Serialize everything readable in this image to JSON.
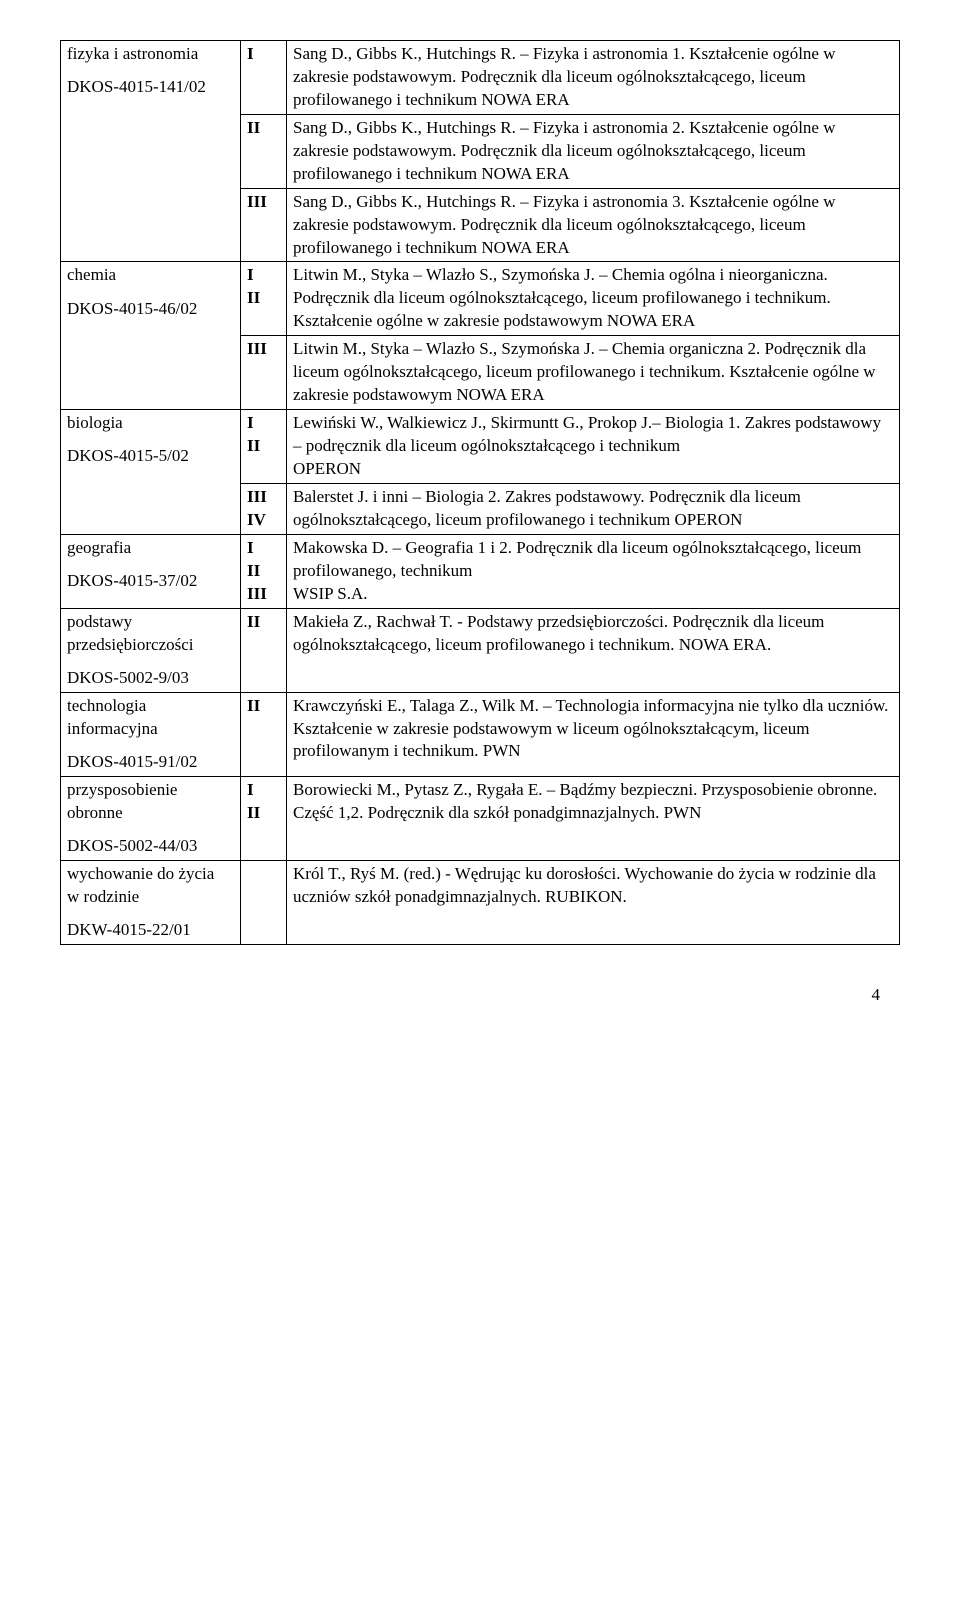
{
  "rows": [
    {
      "subject_lines": [
        "fizyka i astronomia",
        "",
        "DKOS-4015-141/02"
      ],
      "subject_rowspan": 3,
      "cells": [
        {
          "level": "I",
          "text": "Sang D., Gibbs K., Hutchings R. – Fizyka i astronomia 1. Kształcenie ogólne w zakresie podstawowym. Podręcznik dla liceum ogólnokształcącego, liceum profilowanego i technikum NOWA ERA"
        },
        {
          "level": "II",
          "text": "Sang D., Gibbs K., Hutchings R. – Fizyka i astronomia 2. Kształcenie ogólne w zakresie podstawowym. Podręcznik dla liceum ogólnokształcącego, liceum profilowanego i technikum NOWA ERA"
        },
        {
          "level": "III",
          "text": "Sang D., Gibbs K., Hutchings R. – Fizyka i astronomia 3. Kształcenie ogólne w zakresie podstawowym. Podręcznik dla liceum ogólnokształcącego, liceum profilowanego i technikum NOWA ERA"
        }
      ]
    },
    {
      "subject_lines": [
        "chemia",
        "",
        "DKOS-4015-46/02"
      ],
      "subject_rowspan": 2,
      "cells": [
        {
          "level": "I\nII",
          "text": "Litwin M., Styka – Wlazło S., Szymońska J. – Chemia ogólna i nieorganiczna. Podręcznik dla liceum ogólnokształcącego, liceum profilowanego i technikum. Kształcenie ogólne w zakresie podstawowym  NOWA ERA"
        },
        {
          "level": "III",
          "text": "Litwin M., Styka – Wlazło S., Szymońska J. – Chemia organiczna 2. Podręcznik dla liceum ogólnokształcącego, liceum profilowanego i technikum. Kształcenie ogólne  w zakresie podstawowym  NOWA ERA"
        }
      ]
    },
    {
      "subject_lines": [
        "biologia",
        "",
        "DKOS-4015-5/02"
      ],
      "subject_rowspan": 2,
      "cells": [
        {
          "level": "I\nII",
          "text": "Lewiński W., Walkiewicz J., Skirmuntt G., Prokop J.– Biologia 1. Zakres podstawowy – podręcznik dla liceum ogólnokształcącego i technikum\nOPERON"
        },
        {
          "level": "III\nIV",
          "text": "Balerstet J. i inni – Biologia 2. Zakres podstawowy. Podręcznik dla liceum ogólnokształcącego, liceum profilowanego i technikum OPERON"
        }
      ]
    },
    {
      "subject_lines": [
        "geografia",
        "",
        "DKOS-4015-37/02"
      ],
      "subject_rowspan": 1,
      "cells": [
        {
          "level": "I\nII\nIII",
          "text": "Makowska D. – Geografia 1 i 2. Podręcznik dla liceum ogólnokształcącego, liceum profilowanego, technikum\nWSIP S.A."
        }
      ]
    },
    {
      "subject_lines": [
        "podstawy",
        "przedsiębiorczości",
        "",
        "DKOS-5002-9/03"
      ],
      "subject_rowspan": 1,
      "cells": [
        {
          "level": "II",
          "text": "Makieła Z., Rachwał T. - Podstawy przedsiębiorczości. Podręcznik dla liceum ogólnokształcącego, liceum profilowanego i technikum. NOWA ERA."
        }
      ]
    },
    {
      "subject_lines": [
        "technologia",
        "informacyjna",
        "",
        "DKOS-4015-91/02"
      ],
      "subject_rowspan": 1,
      "cells": [
        {
          "level": "II",
          "text": "Krawczyński E., Talaga Z., Wilk M. – Technologia informacyjna nie tylko dla uczniów. Kształcenie w zakresie podstawowym w liceum ogólnokształcącym, liceum profilowanym i technikum. PWN"
        }
      ]
    },
    {
      "subject_lines": [
        "przysposobienie",
        "obronne",
        "",
        "DKOS-5002-44/03"
      ],
      "subject_rowspan": 1,
      "cells": [
        {
          "level": "I\nII",
          "text": "Borowiecki M., Pytasz Z., Rygała E. – Bądźmy bezpieczni. Przysposobienie obronne. Część 1,2. Podręcznik dla szkół ponadgimnazjalnych. PWN"
        }
      ]
    },
    {
      "subject_lines": [
        "wychowanie do życia",
        "w rodzinie",
        "",
        "DKW-4015-22/01"
      ],
      "subject_rowspan": 1,
      "cells": [
        {
          "level": "",
          "text": "Król T., Ryś M. (red.) - Wędrując ku dorosłości. Wychowanie do życia w rodzinie dla uczniów szkół ponadgimnazjalnych. RUBIKON."
        }
      ]
    }
  ],
  "page_number": "4"
}
